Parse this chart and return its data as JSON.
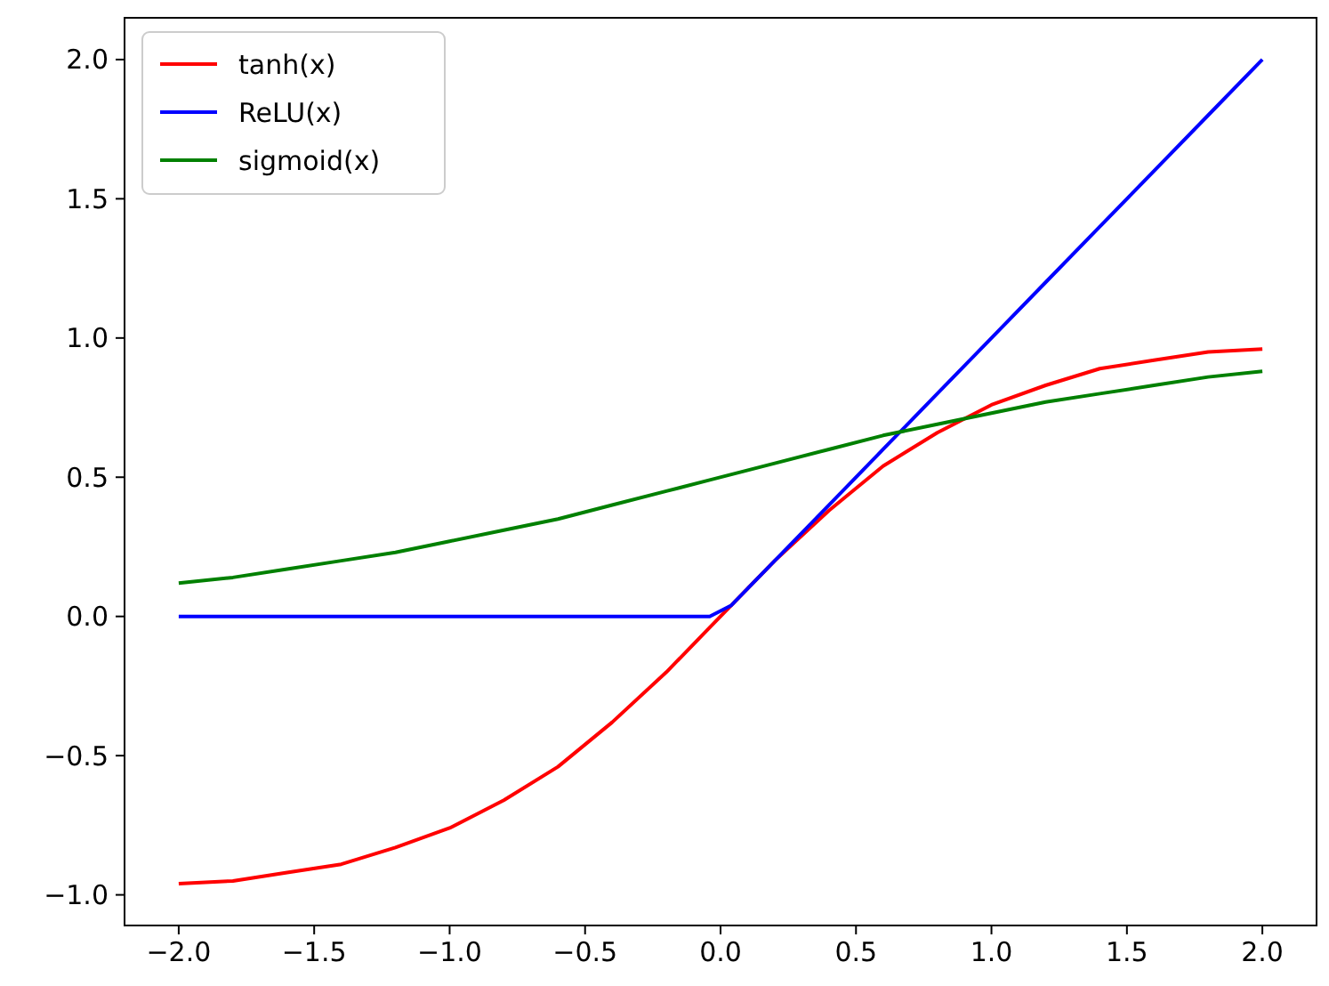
{
  "chart_data": {
    "type": "line",
    "x": [
      -2,
      -1.8,
      -1.6,
      -1.4,
      -1.2,
      -1,
      -0.8,
      -0.6,
      -0.4,
      -0.2,
      -0.04,
      0.04,
      0.2,
      0.4,
      0.6,
      0.8,
      1,
      1.2,
      1.4,
      1.6,
      1.8,
      2
    ],
    "series": [
      {
        "name": "tanh(x)",
        "color": "#ff0000",
        "values": [
          -0.96,
          -0.95,
          -0.92,
          -0.89,
          -0.83,
          -0.76,
          -0.66,
          -0.54,
          -0.38,
          -0.2,
          -0.04,
          0.04,
          0.2,
          0.38,
          0.54,
          0.66,
          0.76,
          0.83,
          0.89,
          0.92,
          0.95,
          0.96
        ]
      },
      {
        "name": "ReLU(x)",
        "color": "#0000ff",
        "values": [
          0,
          0,
          0,
          0,
          0,
          0,
          0,
          0,
          0,
          0,
          0,
          0.04,
          0.2,
          0.4,
          0.6,
          0.8,
          1,
          1.2,
          1.4,
          1.6,
          1.8,
          2
        ]
      },
      {
        "name": "sigmoid(x)",
        "color": "#008000",
        "values": [
          0.12,
          0.14,
          0.17,
          0.2,
          0.23,
          0.27,
          0.31,
          0.35,
          0.4,
          0.45,
          0.49,
          0.51,
          0.55,
          0.6,
          0.65,
          0.69,
          0.73,
          0.77,
          0.8,
          0.83,
          0.86,
          0.88
        ]
      }
    ],
    "xlim": [
      -2.2,
      2.2
    ],
    "xticks": [
      {
        "value": -2,
        "label": "−2.0"
      },
      {
        "value": -1.5,
        "label": "−1.5"
      },
      {
        "value": -1,
        "label": "−1.0"
      },
      {
        "value": -0.5,
        "label": "−0.5"
      },
      {
        "value": 0,
        "label": "0.0"
      },
      {
        "value": 0.5,
        "label": "0.5"
      },
      {
        "value": 1,
        "label": "1.0"
      },
      {
        "value": 1.5,
        "label": "1.5"
      },
      {
        "value": 2,
        "label": "2.0"
      }
    ],
    "ylim": [
      -1.11,
      2.15
    ],
    "yticks": [
      {
        "value": -1,
        "label": "−1.0"
      },
      {
        "value": -0.5,
        "label": "−0.5"
      },
      {
        "value": 0,
        "label": "0.0"
      },
      {
        "value": 0.5,
        "label": "0.5"
      },
      {
        "value": 1,
        "label": "1.0"
      },
      {
        "value": 1.5,
        "label": "1.5"
      },
      {
        "value": 2,
        "label": "2.0"
      }
    ],
    "grid": false,
    "legend": "top left",
    "line_style": "solid",
    "marker": "none"
  }
}
